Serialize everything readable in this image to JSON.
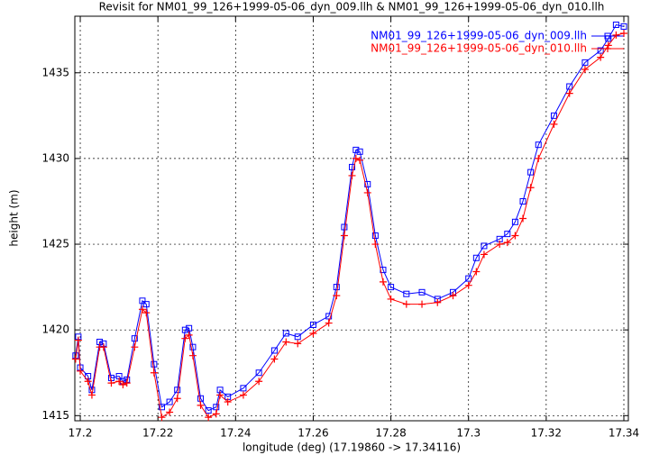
{
  "chart_data": {
    "type": "line",
    "title": "Revisit for NM01_99_126+1999-05-06_dyn_009.llh & NM01_99_126+1999-05-06_dyn_010.llh",
    "x_label": "longitude (deg) (17.19860 -> 17.34116)",
    "y_label": "height (m)",
    "xlim": [
      17.1986,
      17.34116
    ],
    "ylim": [
      1414.7,
      1438.3
    ],
    "xticks": [
      17.2,
      17.22,
      17.24,
      17.26,
      17.28,
      17.3,
      17.32,
      17.34
    ],
    "yticks": [
      1415,
      1420,
      1425,
      1430,
      1435
    ],
    "grid": true,
    "legend": "top-right",
    "x": [
      17.1988,
      17.1995,
      17.2,
      17.202,
      17.203,
      17.205,
      17.206,
      17.208,
      17.21,
      17.211,
      17.212,
      17.214,
      17.216,
      17.217,
      17.219,
      17.221,
      17.223,
      17.225,
      17.227,
      17.228,
      17.229,
      17.231,
      17.233,
      17.235,
      17.236,
      17.238,
      17.242,
      17.246,
      17.25,
      17.253,
      17.256,
      17.26,
      17.264,
      17.266,
      17.268,
      17.27,
      17.271,
      17.272,
      17.274,
      17.276,
      17.278,
      17.28,
      17.284,
      17.288,
      17.292,
      17.296,
      17.3,
      17.302,
      17.304,
      17.308,
      17.31,
      17.312,
      17.314,
      17.316,
      17.318,
      17.322,
      17.326,
      17.33,
      17.334,
      17.336,
      17.338,
      17.34
    ],
    "series": [
      {
        "name": "NM01_99_126+1999-05-06_dyn_009.llh",
        "color": "#0000ff",
        "marker": "square",
        "values": [
          1418.5,
          1419.6,
          1417.8,
          1417.3,
          1416.5,
          1419.3,
          1419.2,
          1417.2,
          1417.3,
          1417.0,
          1417.1,
          1419.5,
          1421.7,
          1421.5,
          1418,
          1415.5,
          1415.8,
          1416.5,
          1420.0,
          1420.1,
          1419,
          1416.0,
          1415.3,
          1415.5,
          1416.5,
          1416.1,
          1416.6,
          1417.5,
          1418.8,
          1419.8,
          1419.6,
          1420.3,
          1420.8,
          1422.5,
          1426,
          1429.5,
          1430.5,
          1430.4,
          1428.5,
          1425.5,
          1423.5,
          1422.5,
          1422.1,
          1422.2,
          1421.8,
          1422.2,
          1423.0,
          1424.2,
          1424.9,
          1425.3,
          1425.6,
          1426.3,
          1427.5,
          1429.2,
          1430.8,
          1432.5,
          1434.2,
          1435.6,
          1436.3,
          1437.0,
          1437.8,
          1437.7
        ]
      },
      {
        "name": "NM01_99_126+1999-05-06_dyn_010.llh",
        "color": "#ff0000",
        "marker": "plus",
        "values": [
          1418.3,
          1419.4,
          1417.6,
          1417.0,
          1416.2,
          1419.0,
          1419.0,
          1416.9,
          1417.0,
          1416.8,
          1416.9,
          1419,
          1421.2,
          1421.0,
          1417.5,
          1414.9,
          1415.2,
          1416.0,
          1419.5,
          1419.7,
          1418.5,
          1415.6,
          1414.9,
          1415.1,
          1416.2,
          1415.8,
          1416.2,
          1417.0,
          1418.3,
          1419.3,
          1419.2,
          1419.8,
          1420.4,
          1422,
          1425.5,
          1429,
          1430,
          1429.9,
          1428,
          1425,
          1422.8,
          1421.8,
          1421.5,
          1421.5,
          1421.6,
          1422.0,
          1422.6,
          1423.4,
          1424.4,
          1425.0,
          1425.1,
          1425.5,
          1426.5,
          1428.3,
          1430,
          1432.0,
          1433.8,
          1435.2,
          1435.9,
          1436.6,
          1437.2,
          1437.3
        ]
      }
    ]
  }
}
